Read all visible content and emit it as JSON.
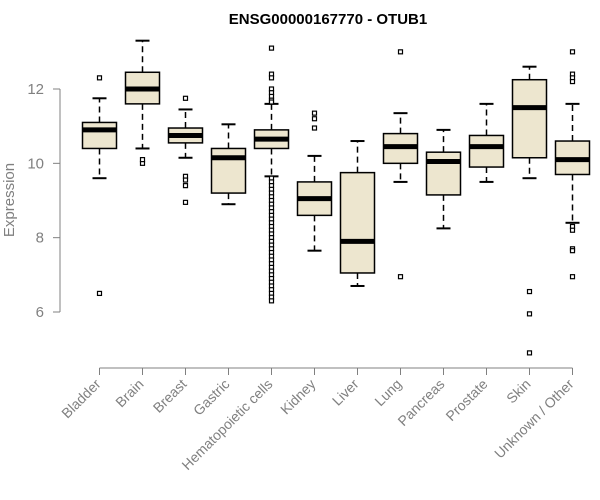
{
  "chart_data": {
    "type": "boxplot",
    "title": "ENSG00000167770 - OTUB1",
    "xlabel": "",
    "ylabel": "Expression",
    "ylim": [
      4.9,
      13.3
    ],
    "yticks": [
      6,
      8,
      10,
      12
    ],
    "grid": false,
    "legend": "none",
    "colors": {
      "box_fill": "#ede6cf",
      "stroke": "#000000",
      "median": "#000000",
      "axis_text": "#808080"
    },
    "categories": [
      "Bladder",
      "Brain",
      "Breast",
      "Gastric",
      "Hematopoietic cells",
      "Kidney",
      "Liver",
      "Lung",
      "Pancreas",
      "Prostate",
      "Skin",
      "Unknown / Other"
    ],
    "boxes": [
      {
        "whisker_low": 9.6,
        "q1": 10.4,
        "median": 10.9,
        "q3": 11.1,
        "whisker_high": 11.75,
        "outliers": [
          12.3,
          6.5
        ]
      },
      {
        "whisker_low": 10.4,
        "q1": 11.6,
        "median": 12.0,
        "q3": 12.45,
        "whisker_high": 13.3,
        "outliers": [
          10.0,
          10.1
        ]
      },
      {
        "whisker_low": 10.15,
        "q1": 10.55,
        "median": 10.75,
        "q3": 10.95,
        "whisker_high": 11.45,
        "outliers": [
          11.75,
          9.65,
          9.55,
          9.4,
          8.95
        ]
      },
      {
        "whisker_low": 8.9,
        "q1": 9.2,
        "median": 10.15,
        "q3": 10.4,
        "whisker_high": 11.05,
        "outliers": []
      },
      {
        "whisker_low": 9.65,
        "q1": 10.4,
        "median": 10.65,
        "q3": 10.9,
        "whisker_high": 11.6,
        "outliers": [
          13.1,
          12.4,
          12.3,
          12.0,
          11.9,
          11.8,
          11.7,
          11.65,
          9.6,
          9.5,
          9.4,
          9.3,
          9.2,
          9.1,
          9.0,
          8.9,
          8.8,
          8.7,
          8.6,
          8.5,
          8.4,
          8.3,
          8.2,
          8.1,
          8.0,
          7.9,
          7.8,
          7.7,
          7.6,
          7.5,
          7.4,
          7.3,
          7.2,
          7.1,
          7.0,
          6.9,
          6.8,
          6.7,
          6.6,
          6.5,
          6.4,
          6.3
        ]
      },
      {
        "whisker_low": 7.65,
        "q1": 8.6,
        "median": 9.05,
        "q3": 9.5,
        "whisker_high": 10.2,
        "outliers": [
          11.35,
          11.2,
          10.95
        ]
      },
      {
        "whisker_low": 6.7,
        "q1": 7.05,
        "median": 7.9,
        "q3": 9.75,
        "whisker_high": 10.6,
        "outliers": []
      },
      {
        "whisker_low": 9.5,
        "q1": 10.0,
        "median": 10.45,
        "q3": 10.8,
        "whisker_high": 11.35,
        "outliers": [
          13.0,
          6.95
        ]
      },
      {
        "whisker_low": 8.25,
        "q1": 9.15,
        "median": 10.05,
        "q3": 10.3,
        "whisker_high": 10.9,
        "outliers": []
      },
      {
        "whisker_low": 9.5,
        "q1": 9.9,
        "median": 10.45,
        "q3": 10.75,
        "whisker_high": 11.6,
        "outliers": []
      },
      {
        "whisker_low": 9.6,
        "q1": 10.15,
        "median": 11.5,
        "q3": 12.25,
        "whisker_high": 12.6,
        "outliers": [
          6.55,
          5.95,
          4.9
        ]
      },
      {
        "whisker_low": 8.4,
        "q1": 9.7,
        "median": 10.1,
        "q3": 10.6,
        "whisker_high": 11.6,
        "outliers": [
          13.0,
          12.4,
          12.3,
          12.2,
          8.3,
          8.2,
          7.7,
          7.65,
          6.95
        ]
      }
    ]
  }
}
